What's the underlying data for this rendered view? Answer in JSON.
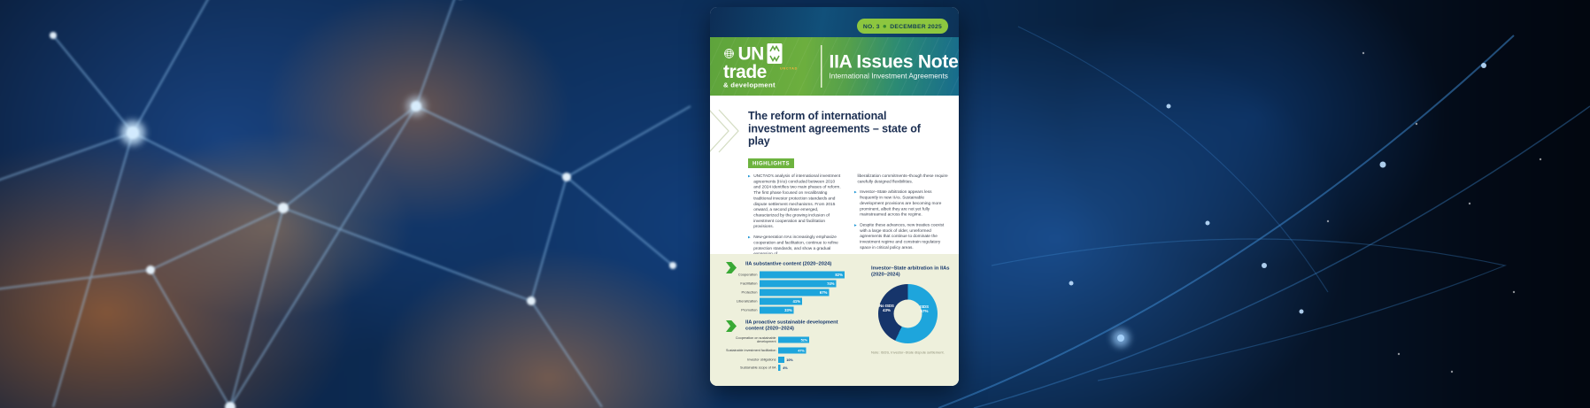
{
  "issue_badge": {
    "number": "NO. 3",
    "separator_icon": "dot",
    "date": "DECEMBER 2025"
  },
  "masthead": {
    "logo": {
      "un": "UN",
      "trade": "trade",
      "development": "& development",
      "unctad": "UNCTAD",
      "emblem_icon": "un-globe-icon",
      "mark_icon": "unctad-chevrons-icon"
    },
    "publication_title": "IIA Issues Note",
    "publication_subtitle": "International Investment Agreements"
  },
  "article": {
    "title": "The reform of international investment agreements – state of play",
    "highlights_label": "HIGHLIGHTS",
    "bullet_marker": "▶",
    "columns": {
      "col1": [
        {
          "text": "UNCTAD's analysis of international investment agreements (IIAs) concluded between 2010 and 2024 identifies two main phases of reform. The first phase focused on recalibrating traditional investor protection standards and dispute settlement mechanisms. From 2015 onward, a second phase emerged, characterized by the growing inclusion of investment cooperation and facilitation provisions."
        },
        {
          "text": "New-generation IIAs increasingly emphasize cooperation and facilitation, continue to refine protection standards, and show a gradual expansion of"
        }
      ],
      "col2": [
        {
          "text": "liberalization commitments–though these require carefully designed flexibilities."
        },
        {
          "text": "Investor–State arbitration appears less frequently in new IIAs. Sustainable development provisions are becoming more prominent, albeit they are not yet fully mainstreamed across the regime."
        },
        {
          "text": "Despite these advances, new treaties coexist with a large stock of older, unreformed agreements that continue to dominate the investment regime and constrain regulatory space in critical policy areas."
        }
      ]
    }
  },
  "chart_data": [
    {
      "type": "bar",
      "orientation": "horizontal",
      "title": "IIA substantive content (2020–2024)",
      "categories": [
        "Cooperation",
        "Facilitation",
        "Protection",
        "Liberalization",
        "Promotion"
      ],
      "values": [
        82,
        74,
        67,
        41,
        33
      ],
      "unit": "%",
      "xlim": [
        0,
        100
      ],
      "grid": false,
      "bar_color": "#1ea5dc"
    },
    {
      "type": "bar",
      "orientation": "horizontal",
      "title": "IIA proactive sustainable development content (2020–2024)",
      "categories": [
        "Cooperation on sustainable development",
        "Sustainable investment facilitation",
        "Investor obligations",
        "Sustainable scope of IIA"
      ],
      "values": [
        52,
        47,
        10,
        4
      ],
      "unit": "%",
      "xlim": [
        0,
        100
      ],
      "grid": false,
      "bar_color": "#1ea5dc"
    },
    {
      "type": "pie",
      "donut": true,
      "title": "Investor–State arbitration in IIAs (2020–2024)",
      "slices": [
        {
          "label": "ISDS",
          "value": 57,
          "color": "#1ea5dc"
        },
        {
          "label": "No ISDS",
          "value": 43,
          "color": "#16356b"
        }
      ],
      "unit": "%",
      "note": "Note: ISDS, Investor–State dispute settlement."
    }
  ],
  "colors": {
    "header_green": "#6cae3e",
    "header_teal": "#176b8d",
    "badge_green": "#8dc63f",
    "highlight_green": "#6db33f",
    "bar_blue": "#1ea5dc",
    "navy": "#16356b",
    "cream": "#eef0dc"
  }
}
